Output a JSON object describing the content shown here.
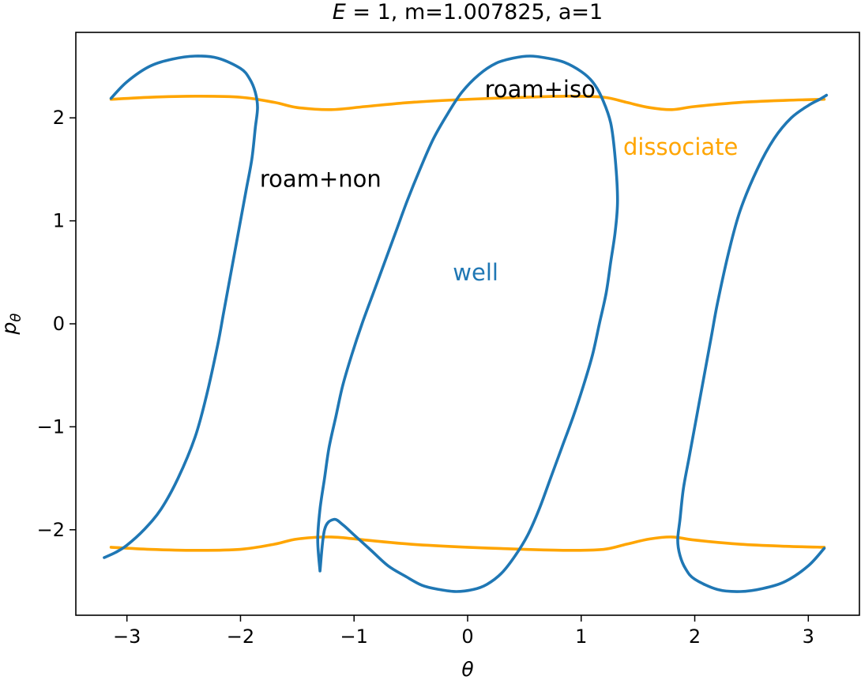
{
  "chart_data": {
    "type": "line",
    "title": "E = 1, m=1.007825, a=1",
    "title_parts": {
      "italic": "E",
      "rest": " = 1, m=1.007825, a=1"
    },
    "xlabel": "θ",
    "ylabel_base": "p",
    "ylabel_sub": "θ",
    "xlim": [
      -3.45,
      3.45
    ],
    "ylim": [
      -2.83,
      2.83
    ],
    "xticks": [
      -3,
      -2,
      -1,
      0,
      1,
      2,
      3
    ],
    "yticks": [
      -2,
      -1,
      0,
      1,
      2
    ],
    "xtick_labels": [
      "−3",
      "−2",
      "−1",
      "0",
      "1",
      "2",
      "3"
    ],
    "ytick_labels": [
      "−2",
      "−1",
      "0",
      "1",
      "2"
    ],
    "grid": false,
    "series": [
      {
        "role": "upper-boundary",
        "color": "#ffa500",
        "x": [
          -3.14,
          -2.8,
          -2.4,
          -2.0,
          -1.7,
          -1.5,
          -1.2,
          -0.9,
          -0.5,
          0.0,
          0.5,
          0.9,
          1.2,
          1.4,
          1.6,
          1.8,
          2.0,
          2.4,
          2.8,
          3.14
        ],
        "y": [
          2.18,
          2.2,
          2.21,
          2.2,
          2.15,
          2.1,
          2.08,
          2.11,
          2.15,
          2.18,
          2.2,
          2.21,
          2.2,
          2.15,
          2.1,
          2.08,
          2.11,
          2.15,
          2.17,
          2.18
        ]
      },
      {
        "role": "lower-boundary",
        "color": "#ffa500",
        "x": [
          -3.14,
          -2.8,
          -2.4,
          -2.0,
          -1.7,
          -1.5,
          -1.2,
          -0.9,
          -0.5,
          0.0,
          0.5,
          0.9,
          1.2,
          1.4,
          1.6,
          1.8,
          2.0,
          2.4,
          2.8,
          3.14
        ],
        "y": [
          -2.17,
          -2.19,
          -2.2,
          -2.19,
          -2.14,
          -2.09,
          -2.07,
          -2.1,
          -2.14,
          -2.17,
          -2.19,
          -2.2,
          -2.19,
          -2.14,
          -2.09,
          -2.07,
          -2.1,
          -2.14,
          -2.16,
          -2.17
        ]
      },
      {
        "role": "separatrix-left",
        "color": "#1f77b4",
        "x": [
          -3.14,
          -3.0,
          -2.8,
          -2.6,
          -2.4,
          -2.2,
          -2.0,
          -1.92,
          -1.87,
          -1.85,
          -1.87,
          -1.9,
          -1.95,
          -2.0,
          -2.05,
          -2.1,
          -2.15,
          -2.2,
          -2.3,
          -2.4,
          -2.55,
          -2.7,
          -2.85,
          -3.0,
          -3.1,
          -3.2
        ],
        "y": [
          2.19,
          2.35,
          2.5,
          2.57,
          2.6,
          2.58,
          2.48,
          2.38,
          2.25,
          2.1,
          1.9,
          1.6,
          1.3,
          1.0,
          0.7,
          0.4,
          0.1,
          -0.2,
          -0.7,
          -1.1,
          -1.5,
          -1.8,
          -2.0,
          -2.15,
          -2.22,
          -2.27
        ]
      },
      {
        "role": "separatrix-middle",
        "color": "#1f77b4",
        "x": [
          -1.3,
          -1.32,
          -1.3,
          -1.26,
          -1.22,
          -1.16,
          -1.1,
          -1.02,
          -0.93,
          -0.83,
          -0.73,
          -0.63,
          -0.53,
          -0.42,
          -0.3,
          -0.17,
          -0.05,
          0.1,
          0.25,
          0.4,
          0.55,
          0.7,
          0.85,
          1.0,
          1.1,
          1.18,
          1.26,
          1.3,
          1.32,
          1.3,
          1.26,
          1.22,
          1.16,
          1.1,
          1.02,
          0.93,
          0.83,
          0.73,
          0.63,
          0.53,
          0.42,
          0.3,
          0.17,
          0.05,
          -0.1,
          -0.25,
          -0.4,
          -0.55,
          -0.7,
          -0.85,
          -1.0,
          -1.1,
          -1.18,
          -1.26,
          -1.3
        ],
        "y": [
          -2.4,
          -2.1,
          -1.8,
          -1.5,
          -1.2,
          -0.9,
          -0.6,
          -0.3,
          0.0,
          0.3,
          0.6,
          0.9,
          1.2,
          1.5,
          1.8,
          2.05,
          2.25,
          2.42,
          2.53,
          2.58,
          2.6,
          2.58,
          2.54,
          2.45,
          2.35,
          2.2,
          1.95,
          1.6,
          1.2,
          0.9,
          0.6,
          0.3,
          0.0,
          -0.3,
          -0.6,
          -0.9,
          -1.2,
          -1.5,
          -1.8,
          -2.05,
          -2.25,
          -2.42,
          -2.53,
          -2.58,
          -2.6,
          -2.58,
          -2.54,
          -2.45,
          -2.35,
          -2.2,
          -2.05,
          -1.95,
          -1.9,
          -2.0,
          -2.4
        ]
      },
      {
        "role": "separatrix-right",
        "color": "#1f77b4",
        "x": [
          3.14,
          3.0,
          2.8,
          2.6,
          2.4,
          2.2,
          2.0,
          1.92,
          1.87,
          1.85,
          1.87,
          1.9,
          1.95,
          2.0,
          2.05,
          2.1,
          2.15,
          2.2,
          2.3,
          2.4,
          2.55,
          2.7,
          2.85,
          3.0,
          3.1,
          3.16
        ],
        "y": [
          -2.18,
          -2.35,
          -2.5,
          -2.57,
          -2.6,
          -2.58,
          -2.48,
          -2.38,
          -2.25,
          -2.1,
          -1.9,
          -1.6,
          -1.3,
          -1.0,
          -0.7,
          -0.4,
          -0.1,
          0.2,
          0.7,
          1.1,
          1.5,
          1.8,
          2.0,
          2.12,
          2.18,
          2.22
        ]
      }
    ],
    "annotations": [
      {
        "text": "roam+iso",
        "x": 0.15,
        "y": 2.2,
        "color": "#000000"
      },
      {
        "text": "roam+non",
        "x": -1.83,
        "y": 1.33,
        "color": "#000000"
      },
      {
        "text": "dissociate",
        "x": 1.37,
        "y": 1.64,
        "color": "#ffa500"
      },
      {
        "text": "well",
        "x": -0.13,
        "y": 0.42,
        "color": "#1f77b4"
      }
    ]
  }
}
